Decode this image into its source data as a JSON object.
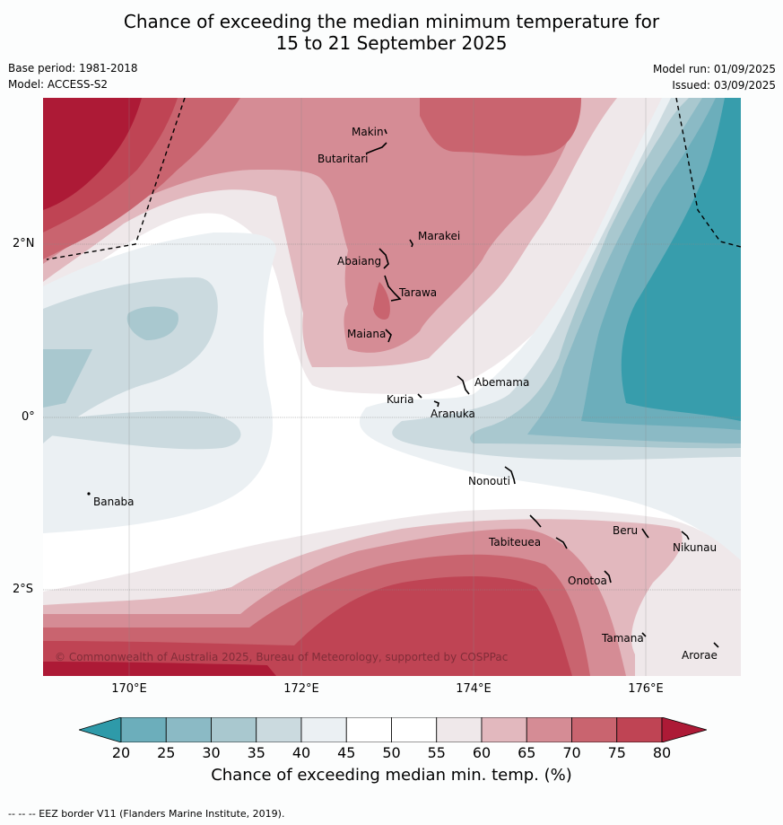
{
  "title_line1": "Chance of exceeding the median minimum temperature for",
  "title_line2": "15 to 21 September 2025",
  "meta": {
    "base_period": "Base period: 1981-2018",
    "model": "Model: ACCESS-S2",
    "model_run": "Model run: 01/09/2025",
    "issued": "Issued: 03/09/2025"
  },
  "map": {
    "lat_labels": [
      "2°N",
      "0°",
      "2°S"
    ],
    "lon_labels": [
      "170°E",
      "172°E",
      "174°E",
      "176°E"
    ],
    "places": {
      "makin": "Makin",
      "butaritari": "Butaritari",
      "marakei": "Marakei",
      "abaiang": "Abaiang",
      "tarawa": "Tarawa",
      "maiana": "Maiana",
      "abemama": "Abemama",
      "kuria": "Kuria",
      "aranuka": "Aranuka",
      "nonouti": "Nonouti",
      "banaba": "Banaba",
      "tabiteuea": "Tabiteuea",
      "beru": "Beru",
      "nikunau": "Nikunau",
      "onotoa": "Onotoa",
      "tamana": "Tamana",
      "arorae": "Arorae"
    },
    "copyright": "© Commonwealth of Australia 2025, Bureau of Meteorology, supported by COSPPac"
  },
  "colorbar": {
    "ticks": [
      "20",
      "25",
      "30",
      "35",
      "40",
      "45",
      "50",
      "55",
      "60",
      "65",
      "70",
      "75",
      "80"
    ],
    "colors": [
      "#2e9aa9",
      "#6caebb",
      "#8bbac5",
      "#a9c8cf",
      "#cbdadf",
      "#ebf0f3",
      "#ffffff",
      "#ffffff",
      "#efe8ea",
      "#e2b8be",
      "#d58c95",
      "#c9646f",
      "#bf4454",
      "#ad1a36"
    ],
    "title": "Chance of exceeding median min. temp. (%)"
  },
  "footer": "--  --  -- EEZ border V11 (Flanders Marine Institute, 2019)."
}
